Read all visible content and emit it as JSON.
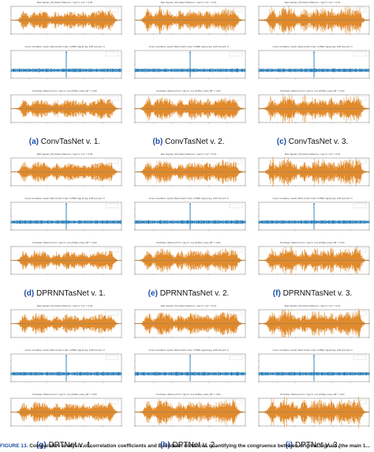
{
  "panels": [
    {
      "label": "(a)",
      "name": "ConvTasNet v. 1.",
      "titles": [
        "Raw Signals | Euclidean Distance: 'neg' to 'out' = 0.00",
        "Cross correlation result | Best match index: 47896, Signal lag: shift amount: 0",
        "Euclidean distance from 'neg' to 'out_shifted_mean_NF' = 0.00"
      ]
    },
    {
      "label": "(b)",
      "name": "ConvTasNet v. 2.",
      "titles": [
        "Raw Signals | Euclidean Distance: 'neg' to 'out' = 0.01",
        "Cross correlation result | Best match index: 47896, Signal lag: shift amount: 0",
        "Euclidean distance from 'neg' to 'out_shifted_mean_NF' = 0.01"
      ]
    },
    {
      "label": "(c)",
      "name": "ConvTasNet v. 3.",
      "titles": [
        "Raw Signals | Euclidean Distance: 'neg' to 'out' = 0.01",
        "Cross correlation result | Best match index: 47896, Signal lag: shift amount: 0",
        "Euclidean distance from 'neg' to 'out_shifted_mean_NF' = 0.01"
      ]
    },
    {
      "label": "(d)",
      "name": "DPRNNTasNet v. 1.",
      "titles": [
        "Raw Signals | Euclidean Distance: 'neg' to 'out' = 0.00",
        "Cross correlation result | Best match index: 47896, Signal lag: shift amount: 0",
        "Euclidean distance from 'neg' to 'out_shifted_mean_NF' = 0.00"
      ]
    },
    {
      "label": "(e)",
      "name": "DPRNNTasNet v. 2.",
      "titles": [
        "Raw Signals | Euclidean Distance: 'neg' to 'out' = 0.01",
        "Cross correlation result | Best match index: 47896, Signal lag: shift amount: 0",
        "Euclidean distance from 'neg' to 'out_shifted_mean_NF' = 0.01"
      ]
    },
    {
      "label": "(f)",
      "name": "DPRNNTasNet v. 3.",
      "titles": [
        "Raw Signals | Euclidean Distance: 'neg' to 'out' = 0.01",
        "Cross correlation result | Best match index: 47896, Signal lag: shift amount: 0",
        "Euclidean distance from 'neg' to 'out_shifted_mean_NF' = 0.01"
      ]
    },
    {
      "label": "(g)",
      "name": "DPTNet v. 1.",
      "titles": [
        "Raw Signals | Euclidean Distance: 'neg' to 'out' = 0.00",
        "Cross correlation result | Best match index: 47896, Signal lag: shift amount: 0",
        "Euclidean distance from 'neg' to 'out_shifted_mean_NF' = 0.00"
      ]
    },
    {
      "label": "(h)",
      "name": "DPTNet v. 2.",
      "titles": [
        "Raw Signals | Euclidean Distance: 'neg' to 'out' = 0.01",
        "Cross correlation result | Best match index: 47896, Signal lag: shift amount: 0",
        "Euclidean distance from 'neg' to 'out_shifted_mean_NF' = 0.01"
      ]
    },
    {
      "label": "(i)",
      "name": "DPTNet v. 3.",
      "titles": [
        "Raw Signals | Euclidean Distance: 'neg' to 'out' = 0.01",
        "Cross correlation result | Best match index: 47896, Signal lag: shift amount: 0",
        "Euclidean distance from 'neg' to 'out_shifted_mean_NF' = 0.01"
      ]
    }
  ],
  "footer": {
    "label": "FIGURE 13.",
    "text": "Comparative analysis of correlation coefficients and Euclidean distances quantifying the congruence between original signals (the main 1..."
  },
  "colors": {
    "wave": "#e08a2c",
    "xcorr": "#1f77b4",
    "axis": "#333333",
    "caption_label": "#1f4fa8"
  }
}
